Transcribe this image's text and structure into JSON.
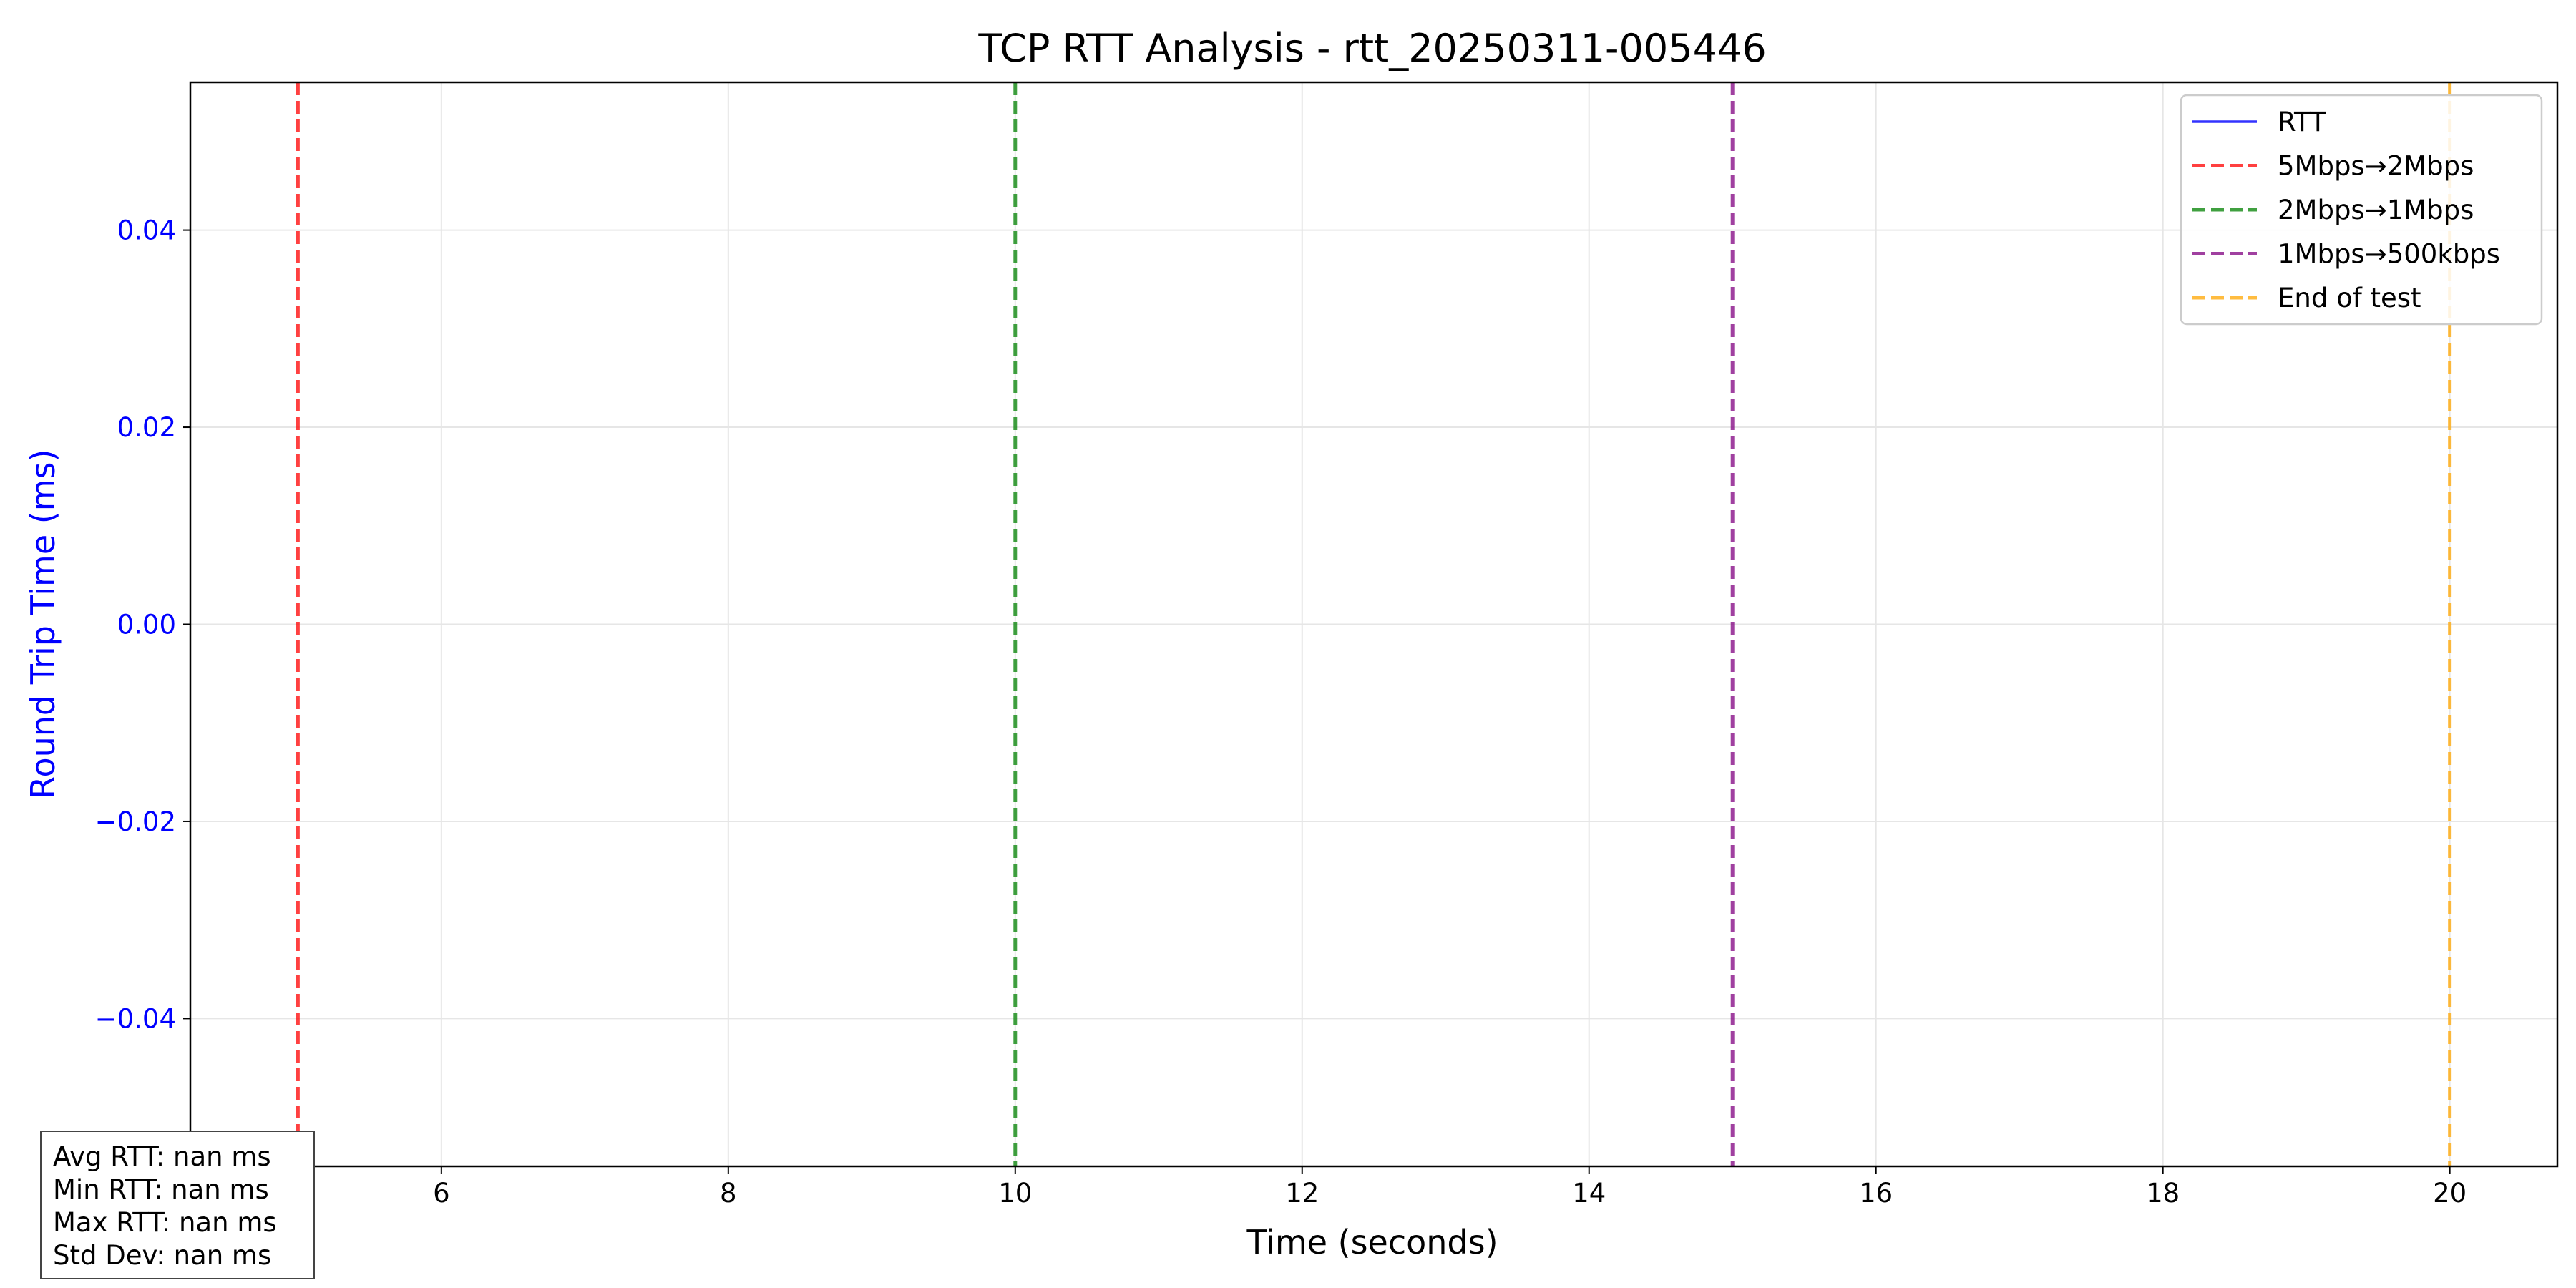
{
  "chart_data": {
    "type": "line",
    "title": "TCP RTT Analysis - rtt_20250311-005446",
    "xlabel": "Time (seconds)",
    "ylabel": "Round Trip Time (ms)",
    "xlim": [
      4.25,
      20.75
    ],
    "ylim": [
      -0.055,
      0.055
    ],
    "x_ticks": [
      6,
      8,
      10,
      12,
      14,
      16,
      18,
      20
    ],
    "y_ticks": [
      0.04,
      0.02,
      0.0,
      -0.02,
      -0.04
    ],
    "y_tick_labels": [
      "0.04",
      "0.02",
      "0.00",
      "−0.02",
      "−0.04"
    ],
    "grid": true,
    "legend_position": "top-right",
    "series": [
      {
        "name": "RTT",
        "x": [],
        "y": [],
        "color": "#0000ff",
        "style": "solid"
      }
    ],
    "vlines": [
      {
        "name": "5Mbps→2Mbps",
        "x": 5,
        "color": "#ff0000",
        "style": "dashed"
      },
      {
        "name": "2Mbps→1Mbps",
        "x": 10,
        "color": "#008000",
        "style": "dashed"
      },
      {
        "name": "1Mbps→500kbps",
        "x": 15,
        "color": "#800080",
        "style": "dashed"
      },
      {
        "name": "End of test",
        "x": 20,
        "color": "#ffa500",
        "style": "dashed"
      }
    ],
    "stats": [
      "Avg RTT: nan ms",
      "Min RTT: nan ms",
      "Max RTT: nan ms",
      "Std Dev: nan ms"
    ]
  }
}
